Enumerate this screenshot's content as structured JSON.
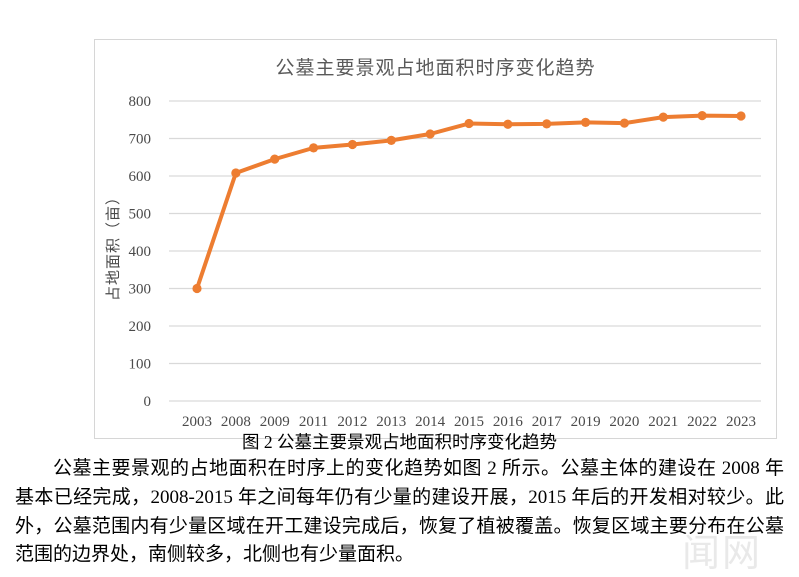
{
  "figure": {
    "caption": "图 2 公墓主要景观占地面积时序变化趋势"
  },
  "body": {
    "paragraph": "公墓主要景观的占地面积在时序上的变化趋势如图 2 所示。公墓主体的建设在 2008 年基本已经完成，2008-2015 年之间每年仍有少量的建设开展，2015 年后的开发相对较少。此外，公墓范围内有少量区域在开工建设完成后，恢复了植被覆盖。恢复区域主要分布在公墓范围的边界处，南侧较多，北侧也有少量面积。"
  },
  "watermark": {
    "text": "闻网"
  },
  "chart_data": {
    "type": "line",
    "title": "公墓主要景观占地面积时序变化趋势",
    "xlabel": "",
    "ylabel": "占地面积（亩）",
    "categories": [
      "2003",
      "2008",
      "2009",
      "2011",
      "2012",
      "2013",
      "2014",
      "2015",
      "2016",
      "2017",
      "2019",
      "2020",
      "2021",
      "2022",
      "2023"
    ],
    "values": [
      300,
      608,
      645,
      675,
      684,
      695,
      712,
      740,
      738,
      739,
      743,
      741,
      757,
      761,
      760
    ],
    "ylim": [
      0,
      800
    ],
    "ytick_step": 100,
    "grid": true,
    "legend_position": "none",
    "line_color": "#ED7D31",
    "marker": "circle",
    "grid_color": "#d9d9d9",
    "axis_text_color": "#4a4a4a",
    "title_color": "#595959"
  }
}
